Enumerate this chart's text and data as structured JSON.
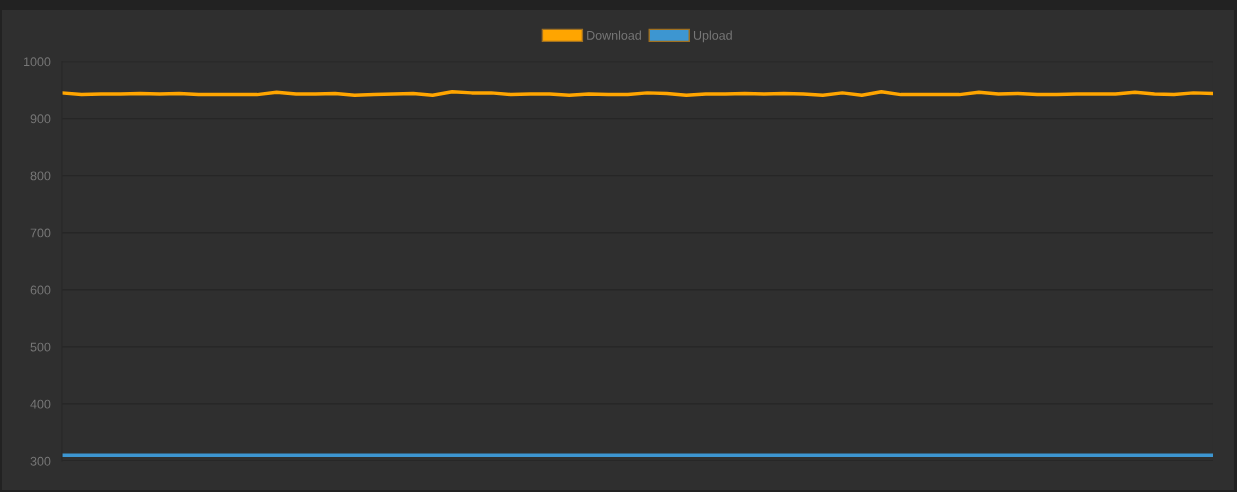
{
  "chart_data": {
    "type": "line",
    "categories": [
      null,
      null,
      null,
      null,
      null,
      null,
      null,
      null,
      null,
      null,
      null,
      null,
      null,
      null,
      null,
      null,
      null,
      null,
      null,
      null,
      null,
      null,
      null,
      null,
      null,
      null,
      null,
      null,
      null,
      null,
      null,
      null,
      null,
      null,
      null,
      null,
      null,
      null,
      null,
      null,
      null,
      null,
      null,
      null,
      null,
      null,
      null,
      null,
      null,
      null,
      null,
      null,
      null,
      null,
      null,
      null,
      null,
      null,
      null,
      null
    ],
    "series": [
      {
        "name": "Download",
        "color": "#ffa500",
        "values": [
          945,
          942,
          943,
          943,
          944,
          943,
          944,
          942,
          942,
          942,
          942,
          946,
          943,
          943,
          944,
          941,
          942,
          943,
          944,
          941,
          947,
          945,
          945,
          942,
          943,
          943,
          941,
          943,
          942,
          942,
          945,
          944,
          941,
          943,
          943,
          944,
          943,
          944,
          943,
          941,
          945,
          941,
          947,
          942,
          942,
          942,
          942,
          946,
          943,
          944,
          942,
          942,
          943,
          943,
          943,
          946,
          943,
          942,
          945,
          944
        ]
      },
      {
        "name": "Upload",
        "color": "#3d96d1",
        "values": [
          310,
          310,
          310,
          310,
          310,
          310,
          310,
          310,
          310,
          310,
          310,
          310,
          310,
          310,
          310,
          310,
          310,
          310,
          310,
          310,
          310,
          310,
          310,
          310,
          310,
          310,
          310,
          310,
          310,
          310,
          310,
          310,
          310,
          310,
          310,
          310,
          310,
          310,
          310,
          310,
          310,
          310,
          310,
          310,
          310,
          310,
          310,
          310,
          310,
          310,
          310,
          310,
          310,
          310,
          310,
          310,
          310,
          310,
          310,
          310
        ]
      }
    ],
    "ylim": [
      300,
      1000
    ],
    "yticks": [
      300,
      400,
      500,
      600,
      700,
      800,
      900,
      1000
    ],
    "grid": "y",
    "legend": "top",
    "marker": "none",
    "line_style": "solid",
    "tick_labels": "y"
  }
}
